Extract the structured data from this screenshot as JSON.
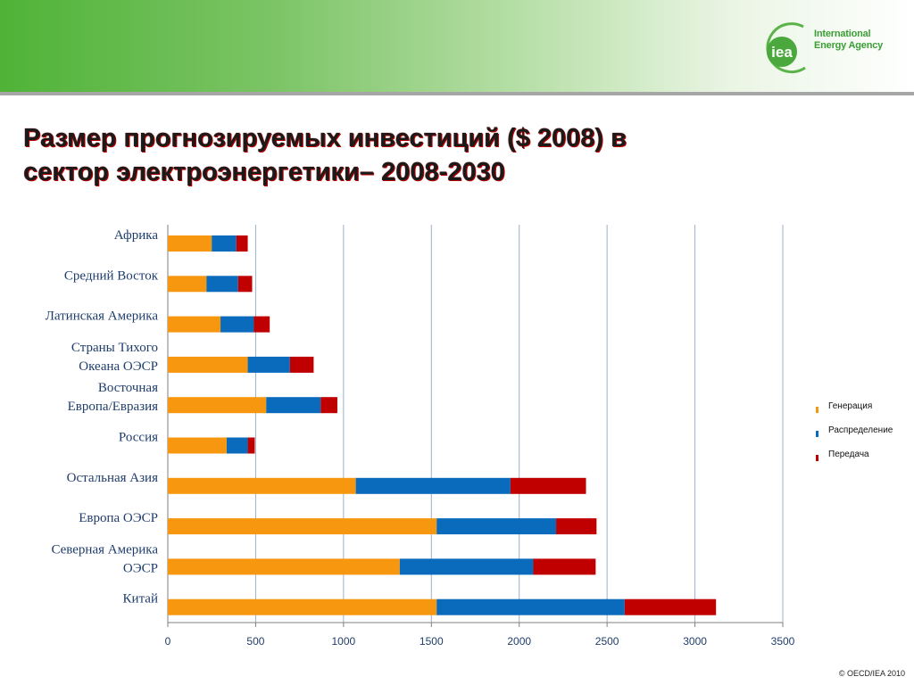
{
  "header": {
    "logo_text_line1": "International",
    "logo_text_line2": "Energy Agency",
    "logo_mark": "iea"
  },
  "title": {
    "line1": "Размер прогнозируемых инвестиций ($ 2008) в",
    "line2": "сектор электроэнергетики– 2008-2030"
  },
  "footer": {
    "copyright": "© OECD/IEA 2010"
  },
  "colors": {
    "generation": "#f7970f",
    "distribution": "#0a6bbd",
    "transmission": "#c00000",
    "grid": "#9bb0c8"
  },
  "chart_data": {
    "type": "bar",
    "orientation": "horizontal",
    "stacked": true,
    "categories": [
      [
        "Африка"
      ],
      [
        "Средний Восток"
      ],
      [
        "Латинская Америка"
      ],
      [
        "Страны Тихого",
        "Океана ОЭСР"
      ],
      [
        "Восточная",
        "Европа/Евразия"
      ],
      [
        "Россия"
      ],
      [
        "Остальная Азия"
      ],
      [
        "Европа ОЭСР"
      ],
      [
        "Северная Америка",
        "ОЭСР"
      ],
      [
        "Китай"
      ]
    ],
    "series": [
      {
        "name": "Генерация",
        "values": [
          250,
          220,
          300,
          455,
          560,
          335,
          1070,
          1530,
          1320,
          1530
        ]
      },
      {
        "name": "Распределение",
        "values": [
          140,
          180,
          190,
          240,
          310,
          120,
          880,
          680,
          760,
          1070
        ]
      },
      {
        "name": "Передача",
        "values": [
          65,
          80,
          90,
          135,
          95,
          40,
          430,
          230,
          355,
          520
        ]
      }
    ],
    "xlim": [
      0,
      3500
    ],
    "xticks": [
      0,
      500,
      1000,
      1500,
      2000,
      2500,
      3000,
      3500
    ],
    "grid": true,
    "legend_position": "right"
  }
}
